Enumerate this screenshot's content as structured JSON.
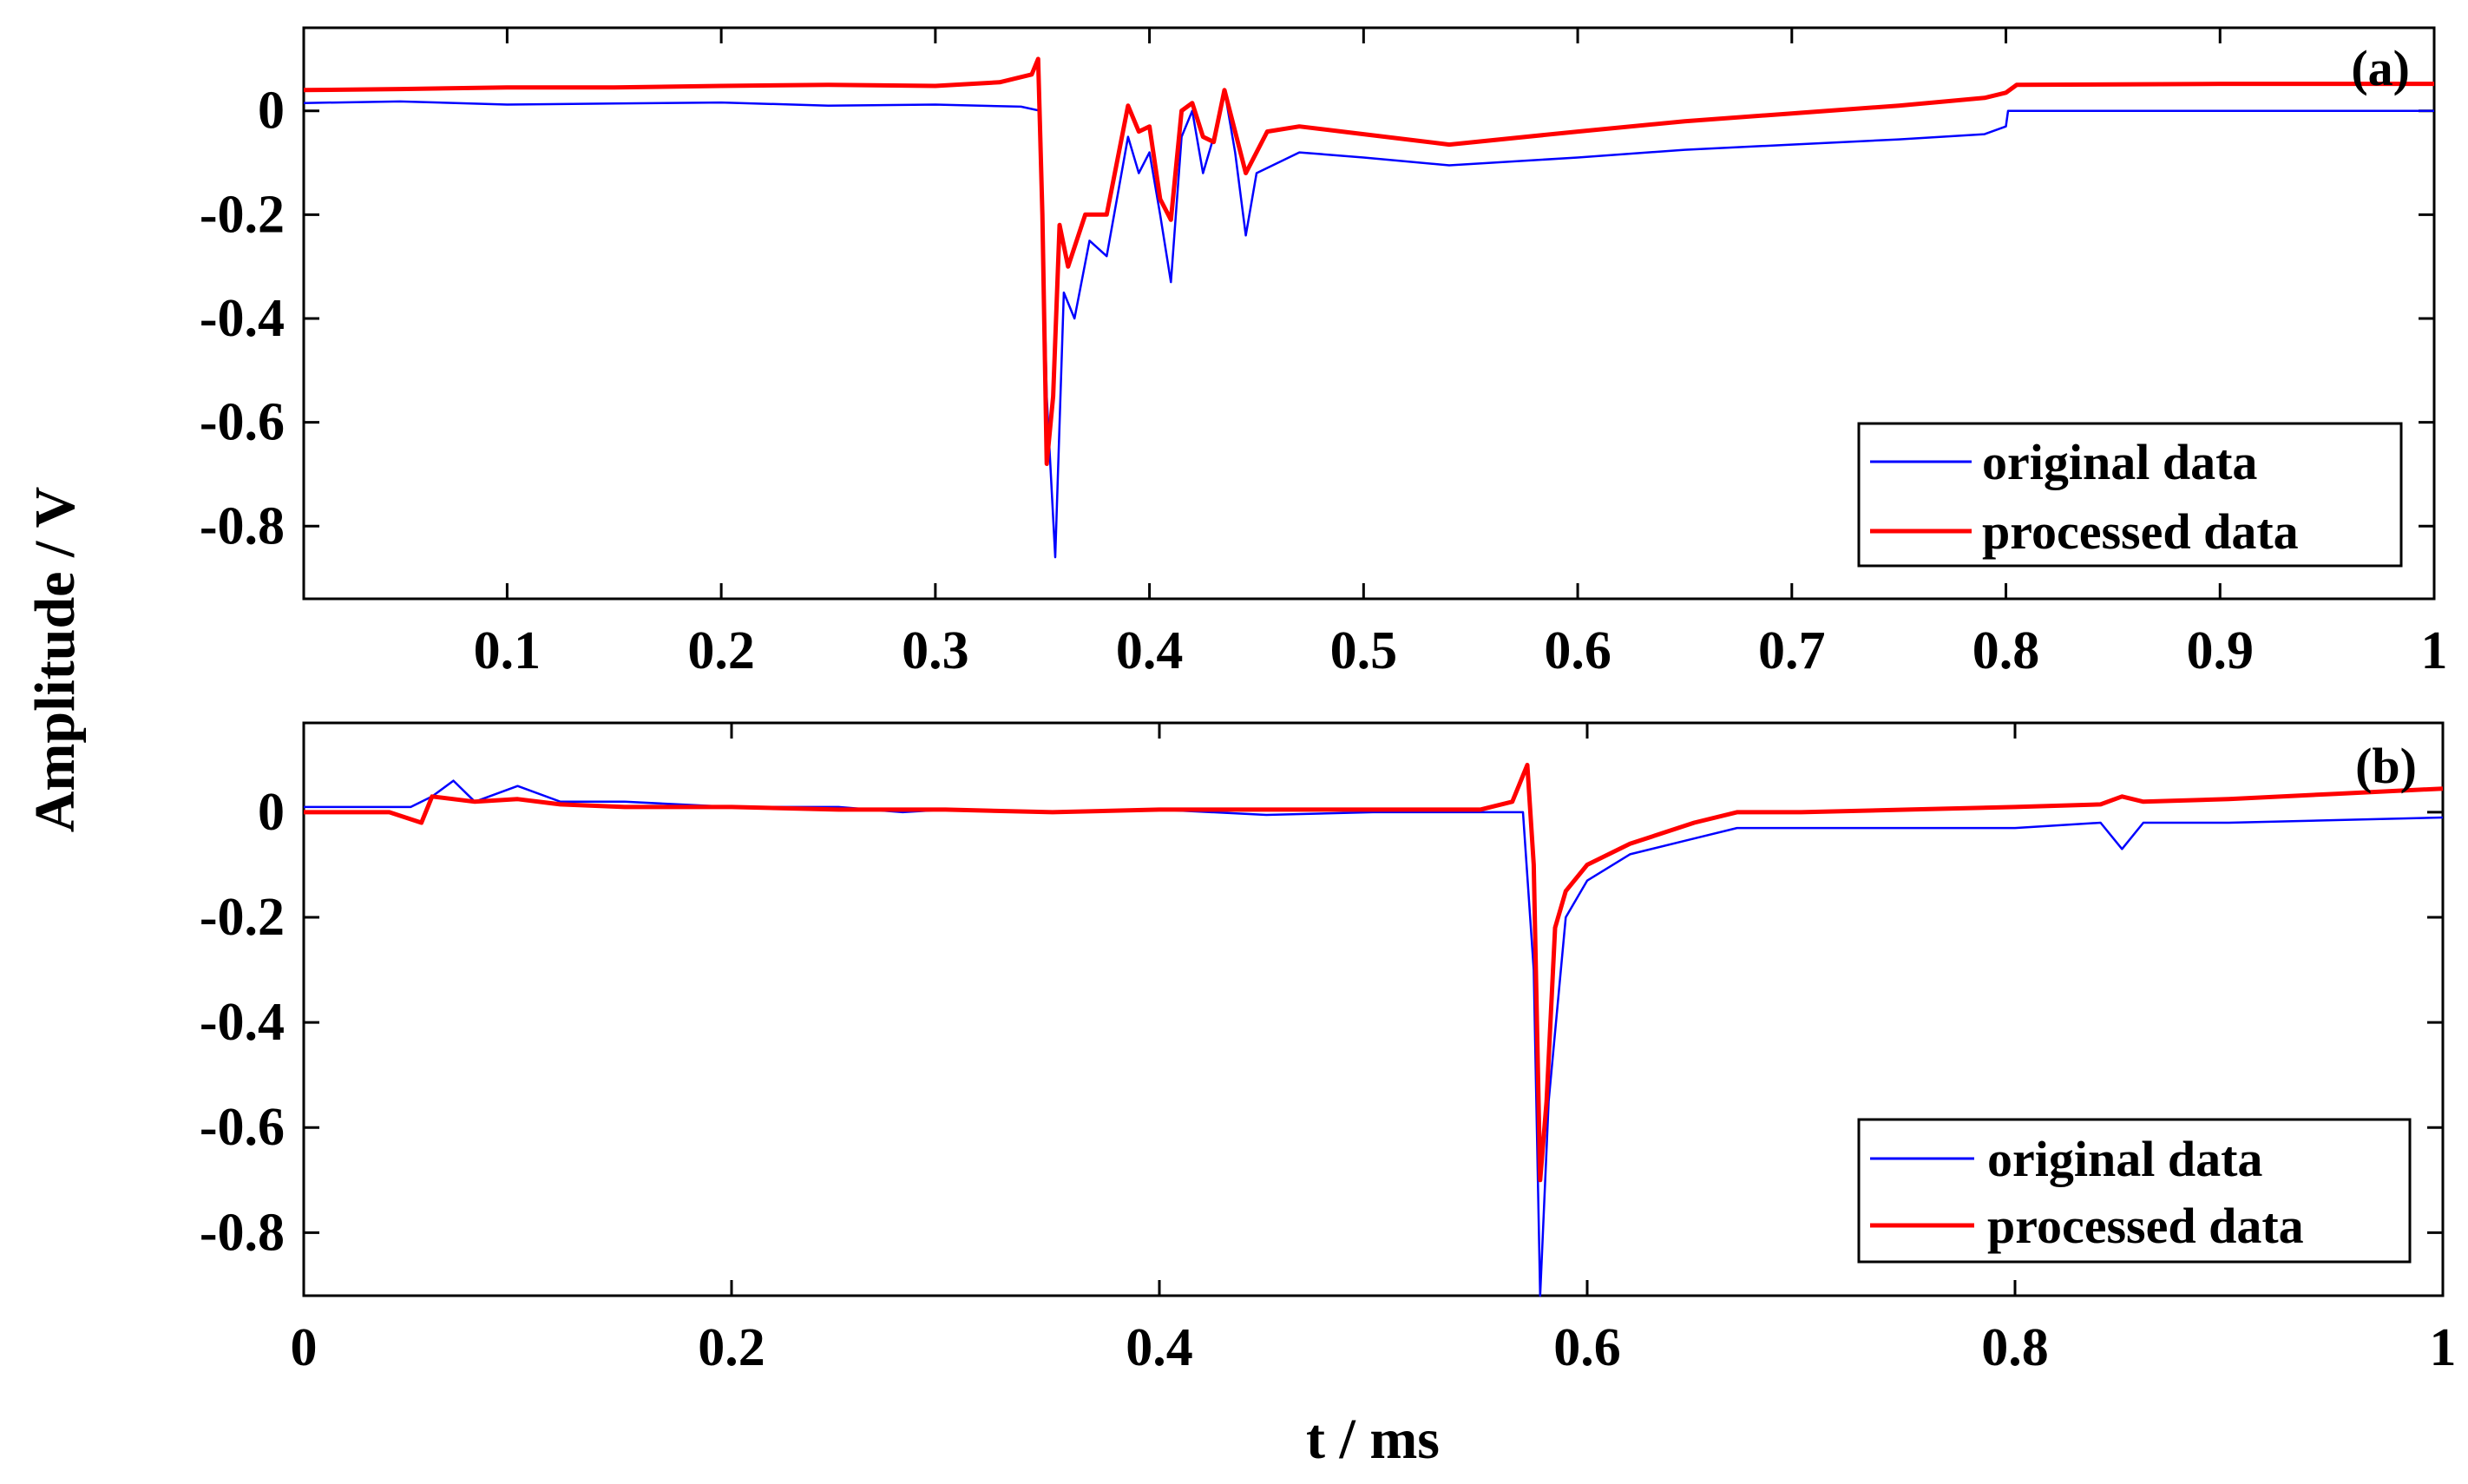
{
  "colors": {
    "original": "#0000ff",
    "processed": "#ff0000"
  },
  "ylabel": "Amplitude / V",
  "xlabel": "t / ms",
  "chart_data": [
    {
      "type": "line",
      "panel_label": "(a)",
      "xlim": [
        0.005,
        1.0
      ],
      "ylim": [
        -0.94,
        0.16
      ],
      "x_ticks": [
        0.1,
        0.2,
        0.3,
        0.4,
        0.5,
        0.6,
        0.7,
        0.8,
        0.9,
        1
      ],
      "x_tick_labels": [
        "0.1",
        "0.2",
        "0.3",
        "0.4",
        "0.5",
        "0.6",
        "0.7",
        "0.8",
        "0.9",
        "1"
      ],
      "y_ticks": [
        0,
        -0.2,
        -0.4,
        -0.6,
        -0.8
      ],
      "y_tick_labels": [
        "0",
        "-0.2",
        "-0.4",
        "-0.6",
        "-0.8"
      ],
      "legend": {
        "position": "bottom-right",
        "entries": [
          "original data",
          "processed data"
        ]
      },
      "series": [
        {
          "name": "original data",
          "x": [
            0.005,
            0.05,
            0.1,
            0.15,
            0.2,
            0.25,
            0.3,
            0.34,
            0.349,
            0.352,
            0.356,
            0.36,
            0.365,
            0.372,
            0.38,
            0.39,
            0.395,
            0.4,
            0.405,
            0.41,
            0.415,
            0.42,
            0.425,
            0.43,
            0.435,
            0.44,
            0.445,
            0.45,
            0.47,
            0.5,
            0.54,
            0.6,
            0.65,
            0.7,
            0.75,
            0.79,
            0.8,
            0.801,
            0.9,
            1.0
          ],
          "y": [
            0.015,
            0.018,
            0.012,
            0.014,
            0.016,
            0.01,
            0.012,
            0.008,
            0.0,
            -0.55,
            -0.86,
            -0.35,
            -0.4,
            -0.25,
            -0.28,
            -0.05,
            -0.12,
            -0.08,
            -0.2,
            -0.33,
            -0.05,
            0.0,
            -0.12,
            -0.05,
            0.04,
            -0.08,
            -0.24,
            -0.12,
            -0.08,
            -0.09,
            -0.105,
            -0.09,
            -0.075,
            -0.065,
            -0.055,
            -0.045,
            -0.03,
            0.0,
            0.0,
            0.0
          ]
        },
        {
          "name": "processed data",
          "x": [
            0.005,
            0.05,
            0.1,
            0.15,
            0.2,
            0.25,
            0.3,
            0.33,
            0.345,
            0.348,
            0.35,
            0.352,
            0.355,
            0.358,
            0.362,
            0.37,
            0.38,
            0.39,
            0.395,
            0.4,
            0.405,
            0.41,
            0.415,
            0.42,
            0.425,
            0.43,
            0.435,
            0.44,
            0.445,
            0.455,
            0.47,
            0.5,
            0.54,
            0.6,
            0.65,
            0.7,
            0.75,
            0.79,
            0.8,
            0.805,
            0.9,
            1.0
          ],
          "y": [
            0.04,
            0.042,
            0.045,
            0.045,
            0.048,
            0.05,
            0.048,
            0.055,
            0.07,
            0.1,
            -0.2,
            -0.68,
            -0.55,
            -0.22,
            -0.3,
            -0.2,
            -0.2,
            0.01,
            -0.04,
            -0.03,
            -0.17,
            -0.21,
            0.0,
            0.015,
            -0.05,
            -0.06,
            0.04,
            -0.04,
            -0.12,
            -0.04,
            -0.03,
            -0.045,
            -0.065,
            -0.04,
            -0.02,
            -0.005,
            0.01,
            0.025,
            0.035,
            0.05,
            0.052,
            0.052
          ]
        }
      ]
    },
    {
      "type": "line",
      "panel_label": "(b)",
      "xlim": [
        0,
        1
      ],
      "ylim": [
        -0.92,
        0.17
      ],
      "x_ticks": [
        0,
        0.2,
        0.4,
        0.6,
        0.8,
        1
      ],
      "x_tick_labels": [
        "0",
        "0.2",
        "0.4",
        "0.6",
        "0.8",
        "1"
      ],
      "y_ticks": [
        0,
        -0.2,
        -0.4,
        -0.6,
        -0.8
      ],
      "y_tick_labels": [
        "0",
        "-0.2",
        "-0.4",
        "-0.6",
        "-0.8"
      ],
      "legend": {
        "position": "bottom-right",
        "entries": [
          "original data",
          "processed data"
        ]
      },
      "series": [
        {
          "name": "original data",
          "x": [
            0,
            0.05,
            0.06,
            0.07,
            0.08,
            0.1,
            0.12,
            0.15,
            0.2,
            0.25,
            0.28,
            0.3,
            0.35,
            0.4,
            0.45,
            0.5,
            0.55,
            0.57,
            0.575,
            0.578,
            0.582,
            0.59,
            0.6,
            0.62,
            0.65,
            0.67,
            0.7,
            0.75,
            0.8,
            0.84,
            0.85,
            0.86,
            0.9,
            0.95,
            1.0
          ],
          "y": [
            0.01,
            0.01,
            0.03,
            0.06,
            0.02,
            0.05,
            0.02,
            0.02,
            0.01,
            0.01,
            0.0,
            0.005,
            0.0,
            0.005,
            -0.005,
            0.0,
            0.0,
            0.0,
            -0.3,
            -0.92,
            -0.55,
            -0.2,
            -0.13,
            -0.08,
            -0.05,
            -0.03,
            -0.03,
            -0.03,
            -0.03,
            -0.02,
            -0.07,
            -0.02,
            -0.02,
            -0.015,
            -0.01
          ]
        },
        {
          "name": "processed data",
          "x": [
            0,
            0.04,
            0.055,
            0.06,
            0.08,
            0.1,
            0.12,
            0.15,
            0.2,
            0.25,
            0.28,
            0.3,
            0.35,
            0.4,
            0.45,
            0.5,
            0.55,
            0.565,
            0.572,
            0.575,
            0.578,
            0.581,
            0.585,
            0.59,
            0.6,
            0.62,
            0.65,
            0.67,
            0.7,
            0.75,
            0.8,
            0.84,
            0.85,
            0.86,
            0.9,
            0.95,
            1.0
          ],
          "y": [
            0.0,
            0.0,
            -0.02,
            0.03,
            0.02,
            0.025,
            0.015,
            0.01,
            0.01,
            0.005,
            0.005,
            0.005,
            0.0,
            0.005,
            0.005,
            0.005,
            0.005,
            0.02,
            0.09,
            -0.1,
            -0.7,
            -0.55,
            -0.22,
            -0.15,
            -0.1,
            -0.06,
            -0.02,
            0.0,
            0.0,
            0.005,
            0.01,
            0.015,
            0.03,
            0.02,
            0.025,
            0.035,
            0.045
          ]
        }
      ]
    }
  ]
}
